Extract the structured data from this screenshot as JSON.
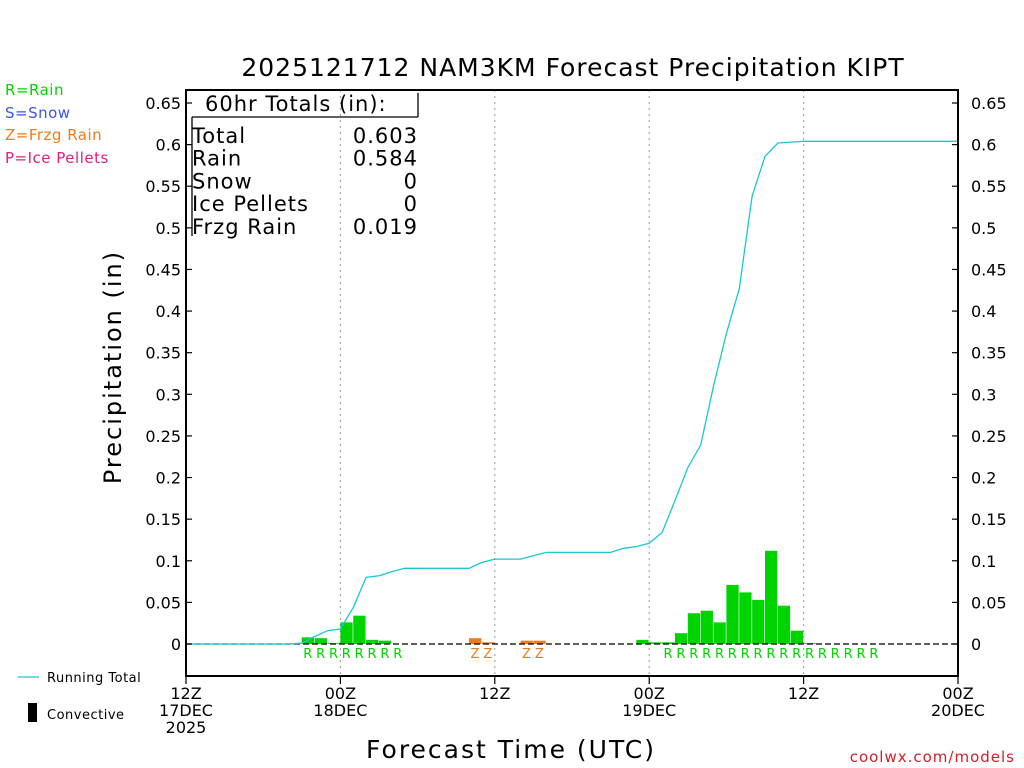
{
  "colors": {
    "rain": "#00d400",
    "frzg": "#f07a1a",
    "total_line": "#19c8d0",
    "snow_label": "#3a55e8",
    "frzg_label": "#f07a1a",
    "ice_label": "#e0207c",
    "rain_label": "#00d400",
    "watermark": "#d0202a"
  },
  "side_legend": {
    "rain": "R=Rain",
    "snow": "S=Snow",
    "frzg": "Z=Frzg Rain",
    "ice": "P=Ice Pellets"
  },
  "bottom_legend": {
    "running_total": "Running Total",
    "convective": "Convective"
  },
  "watermark": "coolwx.com/models",
  "chart_data": {
    "type": "bar",
    "title": "2025121712 NAM3KM Forecast Precipitation KIPT",
    "xlabel": "Forecast Time (UTC)",
    "ylabel": "Precipitation (in)",
    "ylim": [
      -0.04,
      0.65
    ],
    "xlim_hours": [
      0,
      60
    ],
    "y_ticks": [
      0,
      0.05,
      0.1,
      0.15,
      0.2,
      0.25,
      0.3,
      0.35,
      0.4,
      0.45,
      0.5,
      0.55,
      0.6,
      0.65
    ],
    "y_tick_labels": [
      "0",
      "0.05",
      "0.1",
      "0.15",
      "0.2",
      "0.25",
      "0.3",
      "0.35",
      "0.4",
      "0.45",
      "0.5",
      "0.55",
      "0.6",
      "0.65"
    ],
    "x_ticks": [
      {
        "hour": 0,
        "lines": [
          "12Z",
          "17DEC",
          "2025"
        ]
      },
      {
        "hour": 12,
        "lines": [
          "00Z",
          "18DEC"
        ]
      },
      {
        "hour": 24,
        "lines": [
          "12Z"
        ]
      },
      {
        "hour": 36,
        "lines": [
          "00Z",
          "19DEC"
        ]
      },
      {
        "hour": 48,
        "lines": [
          "12Z"
        ]
      },
      {
        "hour": 60,
        "lines": [
          "00Z",
          "20DEC"
        ]
      }
    ],
    "grid_hours": [
      12,
      24,
      36,
      48
    ],
    "totals": {
      "header": "60hr Totals (in):",
      "rows": [
        {
          "label": "Total",
          "value": "0.603"
        },
        {
          "label": "Rain",
          "value": "0.584"
        },
        {
          "label": "Snow",
          "value": "0"
        },
        {
          "label": "Ice Pellets",
          "value": "0"
        },
        {
          "label": "Frzg Rain",
          "value": "0.019"
        }
      ]
    },
    "series": [
      {
        "name": "Rain",
        "type": "bar",
        "hours": [
          10,
          11,
          12,
          13,
          14,
          15,
          16,
          36,
          37,
          38,
          39,
          40,
          41,
          42,
          43,
          44,
          45,
          46,
          47,
          48,
          49
        ],
        "values": [
          0.008,
          0.007,
          0.001,
          0.026,
          0.034,
          0.005,
          0.004,
          0.005,
          0.002,
          0.002,
          0.013,
          0.037,
          0.04,
          0.026,
          0.071,
          0.062,
          0.053,
          0.112,
          0.046,
          0.016,
          0.001
        ]
      },
      {
        "name": "Frzg Rain",
        "type": "bar",
        "hours": [
          23,
          24,
          27,
          28
        ],
        "values": [
          0.007,
          0.002,
          0.004,
          0.004
        ]
      },
      {
        "name": "Running Total",
        "type": "line",
        "hours": [
          0,
          8,
          9,
          10,
          11,
          12,
          13,
          14,
          15,
          16,
          17,
          18,
          19,
          20,
          21,
          22,
          23,
          24,
          25,
          26,
          27,
          28,
          29,
          30,
          31,
          32,
          33,
          34,
          35,
          36,
          37,
          38,
          39,
          40,
          41,
          42,
          43,
          44,
          45,
          46,
          47,
          48,
          49,
          50,
          52,
          56,
          60
        ],
        "values": [
          0,
          0,
          0.001,
          0.009,
          0.016,
          0.018,
          0.044,
          0.08,
          0.082,
          0.087,
          0.091,
          0.091,
          0.091,
          0.091,
          0.091,
          0.091,
          0.098,
          0.102,
          0.102,
          0.102,
          0.106,
          0.11,
          0.11,
          0.11,
          0.11,
          0.11,
          0.11,
          0.115,
          0.117,
          0.121,
          0.134,
          0.172,
          0.212,
          0.239,
          0.31,
          0.373,
          0.427,
          0.538,
          0.586,
          0.602,
          0.603,
          0.604,
          0.604,
          0.604,
          0.604,
          0.604,
          0.604
        ]
      }
    ],
    "ptype_labels": [
      {
        "hour": 10,
        "code": "R"
      },
      {
        "hour": 11,
        "code": "R"
      },
      {
        "hour": 12,
        "code": "R"
      },
      {
        "hour": 13,
        "code": "R"
      },
      {
        "hour": 14,
        "code": "R"
      },
      {
        "hour": 15,
        "code": "R"
      },
      {
        "hour": 16,
        "code": "R"
      },
      {
        "hour": 17,
        "code": "R"
      },
      {
        "hour": 23,
        "code": "Z"
      },
      {
        "hour": 24,
        "code": "Z"
      },
      {
        "hour": 27,
        "code": "Z"
      },
      {
        "hour": 28,
        "code": "Z"
      },
      {
        "hour": 38,
        "code": "R"
      },
      {
        "hour": 39,
        "code": "R"
      },
      {
        "hour": 40,
        "code": "R"
      },
      {
        "hour": 41,
        "code": "R"
      },
      {
        "hour": 42,
        "code": "R"
      },
      {
        "hour": 43,
        "code": "R"
      },
      {
        "hour": 44,
        "code": "R"
      },
      {
        "hour": 45,
        "code": "R"
      },
      {
        "hour": 46,
        "code": "R"
      },
      {
        "hour": 47,
        "code": "R"
      },
      {
        "hour": 48,
        "code": "R"
      },
      {
        "hour": 49,
        "code": "R"
      },
      {
        "hour": 50,
        "code": "R"
      },
      {
        "hour": 51,
        "code": "R"
      },
      {
        "hour": 52,
        "code": "R"
      },
      {
        "hour": 53,
        "code": "R"
      },
      {
        "hour": 54,
        "code": "R"
      }
    ]
  }
}
